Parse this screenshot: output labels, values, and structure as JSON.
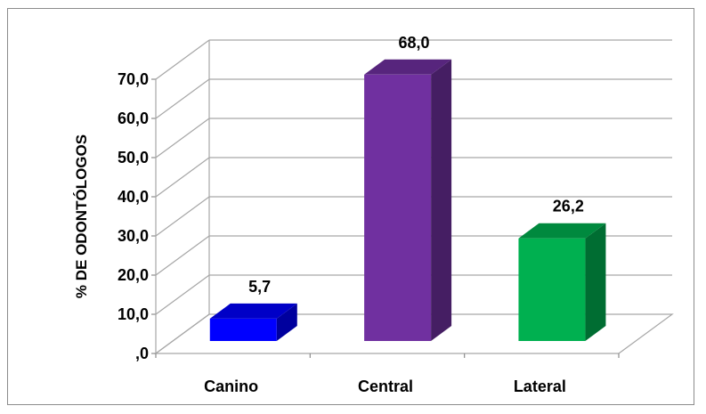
{
  "chart_data": {
    "type": "bar",
    "categories": [
      "Canino",
      "Central",
      "Lateral"
    ],
    "values": [
      5.7,
      68.0,
      26.2
    ],
    "value_labels": [
      "5,7",
      "68,0",
      "26,2"
    ],
    "ylabel": "% DE ODONTÓLOGOS",
    "ylim": [
      0,
      70
    ],
    "yticks": [
      ",0",
      "10,0",
      "20,0",
      "30,0",
      "40,0",
      "50,0",
      "60,0",
      "70,0"
    ],
    "grid": true,
    "style": "3d-column",
    "colors": [
      "#0000ff",
      "#7030a0",
      "#00b050"
    ]
  }
}
